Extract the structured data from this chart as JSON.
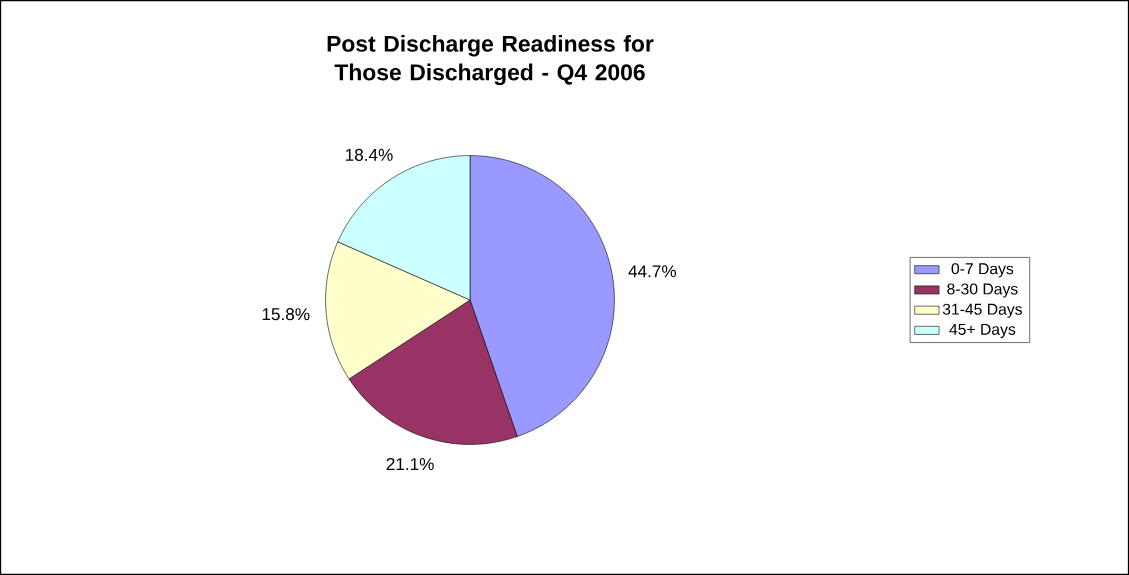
{
  "chart_data": {
    "type": "pie",
    "title": "Post Discharge Readiness for Those Discharged - Q4 2006",
    "categories": [
      "0-7 Days",
      "8-30 Days",
      "31-45 Days",
      "45+ Days"
    ],
    "values": [
      44.7,
      21.1,
      15.8,
      18.4
    ],
    "colors": [
      "#9999ff",
      "#993366",
      "#ffffcc",
      "#ccffff"
    ],
    "value_labels": [
      "44.7%",
      "21.1%",
      "15.8%",
      "18.4%"
    ],
    "legend": "right"
  }
}
